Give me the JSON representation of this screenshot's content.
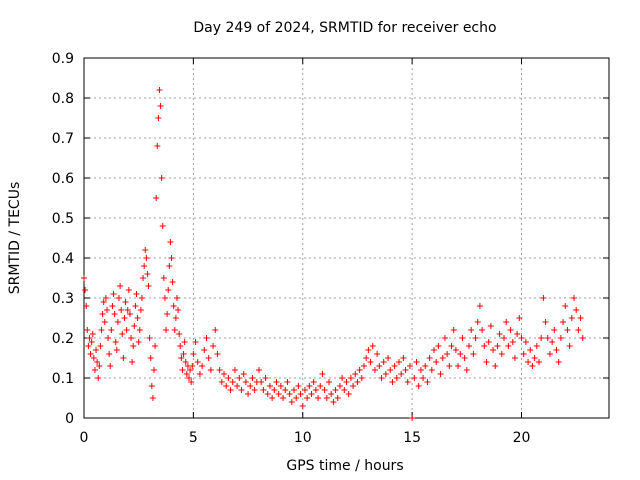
{
  "chart_data": {
    "type": "scatter",
    "title": "Day 249 of 2024, SRMTID for receiver echo",
    "xlabel": "GPS time / hours",
    "ylabel": "SRMTID / TECUs",
    "xlim": [
      0,
      24
    ],
    "ylim": [
      0,
      0.9
    ],
    "xticks": [
      0,
      5,
      10,
      15,
      20
    ],
    "xtick_labels": [
      "0",
      "5",
      "10",
      "15",
      "20"
    ],
    "yticks": [
      0,
      0.1,
      0.2,
      0.3,
      0.4,
      0.5,
      0.6,
      0.7,
      0.8,
      0.9
    ],
    "ytick_labels": [
      "0",
      "0.1",
      "0.2",
      "0.3",
      "0.4",
      "0.5",
      "0.6",
      "0.7",
      "0.8",
      "0.9"
    ],
    "grid": true,
    "marker": "+",
    "color": "#ff0000",
    "series": [
      {
        "name": "SRMTID",
        "points": [
          [
            0.0,
            0.35
          ],
          [
            0.05,
            0.32
          ],
          [
            0.1,
            0.28
          ],
          [
            0.15,
            0.22
          ],
          [
            0.2,
            0.18
          ],
          [
            0.25,
            0.2
          ],
          [
            0.3,
            0.16
          ],
          [
            0.35,
            0.19
          ],
          [
            0.4,
            0.21
          ],
          [
            0.45,
            0.15
          ],
          [
            0.5,
            0.12
          ],
          [
            0.55,
            0.17
          ],
          [
            0.6,
            0.14
          ],
          [
            0.65,
            0.1
          ],
          [
            0.7,
            0.13
          ],
          [
            0.75,
            0.18
          ],
          [
            0.8,
            0.22
          ],
          [
            0.85,
            0.26
          ],
          [
            0.9,
            0.29
          ],
          [
            0.95,
            0.24
          ],
          [
            1.0,
            0.3
          ],
          [
            1.05,
            0.27
          ],
          [
            1.1,
            0.2
          ],
          [
            1.15,
            0.16
          ],
          [
            1.2,
            0.13
          ],
          [
            1.25,
            0.22
          ],
          [
            1.3,
            0.28
          ],
          [
            1.35,
            0.31
          ],
          [
            1.4,
            0.26
          ],
          [
            1.45,
            0.19
          ],
          [
            1.5,
            0.17
          ],
          [
            1.55,
            0.24
          ],
          [
            1.6,
            0.3
          ],
          [
            1.65,
            0.33
          ],
          [
            1.7,
            0.27
          ],
          [
            1.75,
            0.21
          ],
          [
            1.8,
            0.15
          ],
          [
            1.85,
            0.25
          ],
          [
            1.9,
            0.29
          ],
          [
            1.95,
            0.22
          ],
          [
            2.0,
            0.27
          ],
          [
            2.05,
            0.32
          ],
          [
            2.1,
            0.26
          ],
          [
            2.15,
            0.2
          ],
          [
            2.2,
            0.14
          ],
          [
            2.25,
            0.18
          ],
          [
            2.3,
            0.23
          ],
          [
            2.35,
            0.28
          ],
          [
            2.4,
            0.31
          ],
          [
            2.45,
            0.25
          ],
          [
            2.5,
            0.19
          ],
          [
            2.55,
            0.22
          ],
          [
            2.6,
            0.27
          ],
          [
            2.65,
            0.3
          ],
          [
            2.7,
            0.35
          ],
          [
            2.75,
            0.38
          ],
          [
            2.8,
            0.42
          ],
          [
            2.85,
            0.4
          ],
          [
            2.9,
            0.36
          ],
          [
            2.95,
            0.33
          ],
          [
            3.0,
            0.2
          ],
          [
            3.05,
            0.15
          ],
          [
            3.1,
            0.08
          ],
          [
            3.15,
            0.05
          ],
          [
            3.2,
            0.12
          ],
          [
            3.25,
            0.18
          ],
          [
            3.3,
            0.55
          ],
          [
            3.35,
            0.68
          ],
          [
            3.4,
            0.75
          ],
          [
            3.45,
            0.82
          ],
          [
            3.5,
            0.78
          ],
          [
            3.55,
            0.6
          ],
          [
            3.6,
            0.48
          ],
          [
            3.65,
            0.35
          ],
          [
            3.7,
            0.3
          ],
          [
            3.75,
            0.22
          ],
          [
            3.8,
            0.26
          ],
          [
            3.85,
            0.32
          ],
          [
            3.9,
            0.38
          ],
          [
            3.95,
            0.44
          ],
          [
            4.0,
            0.4
          ],
          [
            4.05,
            0.34
          ],
          [
            4.1,
            0.28
          ],
          [
            4.15,
            0.22
          ],
          [
            4.2,
            0.25
          ],
          [
            4.25,
            0.3
          ],
          [
            4.3,
            0.27
          ],
          [
            4.35,
            0.21
          ],
          [
            4.4,
            0.18
          ],
          [
            4.45,
            0.15
          ],
          [
            4.5,
            0.12
          ],
          [
            4.55,
            0.16
          ],
          [
            4.6,
            0.19
          ],
          [
            4.65,
            0.14
          ],
          [
            4.7,
            0.11
          ],
          [
            4.75,
            0.13
          ],
          [
            4.8,
            0.1
          ],
          [
            4.85,
            0.12
          ],
          [
            4.9,
            0.09
          ],
          [
            4.95,
            0.13
          ],
          [
            5.0,
            0.16
          ],
          [
            5.1,
            0.19
          ],
          [
            5.2,
            0.14
          ],
          [
            5.3,
            0.11
          ],
          [
            5.4,
            0.13
          ],
          [
            5.5,
            0.17
          ],
          [
            5.6,
            0.2
          ],
          [
            5.7,
            0.15
          ],
          [
            5.8,
            0.12
          ],
          [
            5.9,
            0.18
          ],
          [
            6.0,
            0.22
          ],
          [
            6.1,
            0.16
          ],
          [
            6.2,
            0.12
          ],
          [
            6.3,
            0.09
          ],
          [
            6.4,
            0.11
          ],
          [
            6.5,
            0.08
          ],
          [
            6.6,
            0.1
          ],
          [
            6.7,
            0.07
          ],
          [
            6.8,
            0.09
          ],
          [
            6.9,
            0.12
          ],
          [
            7.0,
            0.08
          ],
          [
            7.1,
            0.1
          ],
          [
            7.2,
            0.07
          ],
          [
            7.3,
            0.11
          ],
          [
            7.4,
            0.09
          ],
          [
            7.5,
            0.06
          ],
          [
            7.6,
            0.08
          ],
          [
            7.7,
            0.1
          ],
          [
            7.8,
            0.07
          ],
          [
            7.9,
            0.09
          ],
          [
            8.0,
            0.12
          ],
          [
            8.1,
            0.09
          ],
          [
            8.2,
            0.07
          ],
          [
            8.3,
            0.1
          ],
          [
            8.4,
            0.06
          ],
          [
            8.5,
            0.08
          ],
          [
            8.6,
            0.05
          ],
          [
            8.7,
            0.07
          ],
          [
            8.8,
            0.09
          ],
          [
            8.9,
            0.06
          ],
          [
            9.0,
            0.08
          ],
          [
            9.1,
            0.05
          ],
          [
            9.2,
            0.07
          ],
          [
            9.3,
            0.09
          ],
          [
            9.4,
            0.06
          ],
          [
            9.5,
            0.04
          ],
          [
            9.6,
            0.07
          ],
          [
            9.7,
            0.05
          ],
          [
            9.8,
            0.08
          ],
          [
            9.9,
            0.06
          ],
          [
            10.0,
            0.03
          ],
          [
            10.1,
            0.07
          ],
          [
            10.2,
            0.05
          ],
          [
            10.3,
            0.08
          ],
          [
            10.4,
            0.06
          ],
          [
            10.5,
            0.09
          ],
          [
            10.6,
            0.07
          ],
          [
            10.7,
            0.05
          ],
          [
            10.8,
            0.08
          ],
          [
            10.9,
            0.11
          ],
          [
            11.0,
            0.07
          ],
          [
            11.1,
            0.05
          ],
          [
            11.2,
            0.09
          ],
          [
            11.3,
            0.06
          ],
          [
            11.4,
            0.04
          ],
          [
            11.5,
            0.07
          ],
          [
            11.6,
            0.05
          ],
          [
            11.7,
            0.08
          ],
          [
            11.8,
            0.1
          ],
          [
            11.9,
            0.07
          ],
          [
            12.0,
            0.09
          ],
          [
            12.1,
            0.06
          ],
          [
            12.2,
            0.1
          ],
          [
            12.3,
            0.08
          ],
          [
            12.4,
            0.11
          ],
          [
            12.5,
            0.09
          ],
          [
            12.6,
            0.12
          ],
          [
            12.7,
            0.1
          ],
          [
            12.8,
            0.13
          ],
          [
            12.9,
            0.15
          ],
          [
            13.0,
            0.17
          ],
          [
            13.1,
            0.14
          ],
          [
            13.2,
            0.18
          ],
          [
            13.3,
            0.12
          ],
          [
            13.4,
            0.16
          ],
          [
            13.5,
            0.13
          ],
          [
            13.6,
            0.1
          ],
          [
            13.7,
            0.14
          ],
          [
            13.8,
            0.11
          ],
          [
            13.9,
            0.15
          ],
          [
            14.0,
            0.12
          ],
          [
            14.1,
            0.09
          ],
          [
            14.2,
            0.13
          ],
          [
            14.3,
            0.1
          ],
          [
            14.4,
            0.14
          ],
          [
            14.5,
            0.11
          ],
          [
            14.6,
            0.15
          ],
          [
            14.7,
            0.12
          ],
          [
            14.8,
            0.09
          ],
          [
            14.9,
            0.13
          ],
          [
            15.0,
            0.0
          ],
          [
            15.1,
            0.1
          ],
          [
            15.2,
            0.14
          ],
          [
            15.3,
            0.08
          ],
          [
            15.4,
            0.12
          ],
          [
            15.5,
            0.1
          ],
          [
            15.6,
            0.13
          ],
          [
            15.7,
            0.09
          ],
          [
            15.8,
            0.15
          ],
          [
            15.9,
            0.12
          ],
          [
            16.0,
            0.17
          ],
          [
            16.1,
            0.14
          ],
          [
            16.2,
            0.18
          ],
          [
            16.3,
            0.11
          ],
          [
            16.4,
            0.15
          ],
          [
            16.5,
            0.2
          ],
          [
            16.6,
            0.16
          ],
          [
            16.7,
            0.13
          ],
          [
            16.8,
            0.18
          ],
          [
            16.9,
            0.22
          ],
          [
            17.0,
            0.17
          ],
          [
            17.1,
            0.13
          ],
          [
            17.2,
            0.16
          ],
          [
            17.3,
            0.2
          ],
          [
            17.4,
            0.15
          ],
          [
            17.5,
            0.12
          ],
          [
            17.6,
            0.18
          ],
          [
            17.7,
            0.22
          ],
          [
            17.8,
            0.16
          ],
          [
            17.9,
            0.2
          ],
          [
            18.0,
            0.24
          ],
          [
            18.1,
            0.28
          ],
          [
            18.2,
            0.22
          ],
          [
            18.3,
            0.18
          ],
          [
            18.4,
            0.14
          ],
          [
            18.5,
            0.19
          ],
          [
            18.6,
            0.23
          ],
          [
            18.7,
            0.17
          ],
          [
            18.8,
            0.13
          ],
          [
            18.9,
            0.18
          ],
          [
            19.0,
            0.21
          ],
          [
            19.1,
            0.16
          ],
          [
            19.2,
            0.2
          ],
          [
            19.3,
            0.24
          ],
          [
            19.4,
            0.18
          ],
          [
            19.5,
            0.22
          ],
          [
            19.6,
            0.19
          ],
          [
            19.7,
            0.15
          ],
          [
            19.8,
            0.21
          ],
          [
            19.9,
            0.25
          ],
          [
            20.0,
            0.2
          ],
          [
            20.1,
            0.16
          ],
          [
            20.2,
            0.19
          ],
          [
            20.3,
            0.14
          ],
          [
            20.4,
            0.17
          ],
          [
            20.5,
            0.13
          ],
          [
            20.6,
            0.15
          ],
          [
            20.7,
            0.18
          ],
          [
            20.8,
            0.14
          ],
          [
            20.9,
            0.2
          ],
          [
            21.0,
            0.3
          ],
          [
            21.1,
            0.24
          ],
          [
            21.2,
            0.2
          ],
          [
            21.3,
            0.16
          ],
          [
            21.4,
            0.19
          ],
          [
            21.5,
            0.22
          ],
          [
            21.6,
            0.17
          ],
          [
            21.7,
            0.14
          ],
          [
            21.8,
            0.2
          ],
          [
            21.9,
            0.24
          ],
          [
            22.0,
            0.28
          ],
          [
            22.1,
            0.22
          ],
          [
            22.2,
            0.18
          ],
          [
            22.3,
            0.25
          ],
          [
            22.4,
            0.3
          ],
          [
            22.5,
            0.27
          ],
          [
            22.6,
            0.22
          ],
          [
            22.7,
            0.25
          ],
          [
            22.8,
            0.2
          ]
        ]
      }
    ]
  }
}
